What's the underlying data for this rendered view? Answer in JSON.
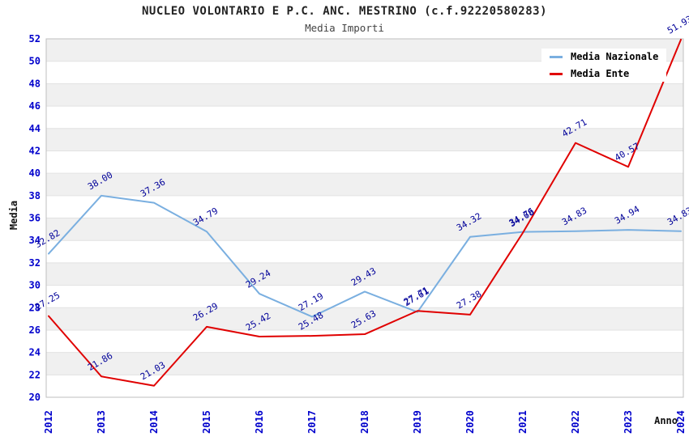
{
  "chart_data": {
    "type": "line",
    "title": "NUCLEO VOLONTARIO E P.C. ANC. MESTRINO (c.f.92220580283)",
    "subtitle": "Media Importi",
    "xlabel": "Anno",
    "ylabel": "Media",
    "x": [
      2012,
      2013,
      2014,
      2015,
      2016,
      2017,
      2018,
      2019,
      2020,
      2021,
      2022,
      2023,
      2024
    ],
    "series": [
      {
        "name": "Media Nazionale",
        "color": "#7AAFE0",
        "values": [
          32.82,
          38.0,
          37.36,
          34.79,
          29.24,
          27.19,
          29.43,
          27.61,
          34.32,
          34.76,
          34.83,
          34.94,
          34.83
        ]
      },
      {
        "name": "Media Ente",
        "color": "#E00000",
        "values": [
          27.25,
          21.86,
          21.03,
          26.29,
          25.42,
          25.48,
          25.63,
          27.71,
          27.38,
          34.68,
          42.71,
          40.57,
          51.93
        ]
      }
    ],
    "ylim": [
      20,
      52
    ],
    "ytick_step": 2,
    "legend_position": "top-right",
    "grid": "horizontal-bands",
    "band_color_even": "#FFFFFF",
    "band_color_odd": "#F0F0F0",
    "gridline_color": "#E2E2E2",
    "border_color": "#BFBFBF",
    "tick_color": "#0000CC",
    "point_label_color": "#000099"
  }
}
